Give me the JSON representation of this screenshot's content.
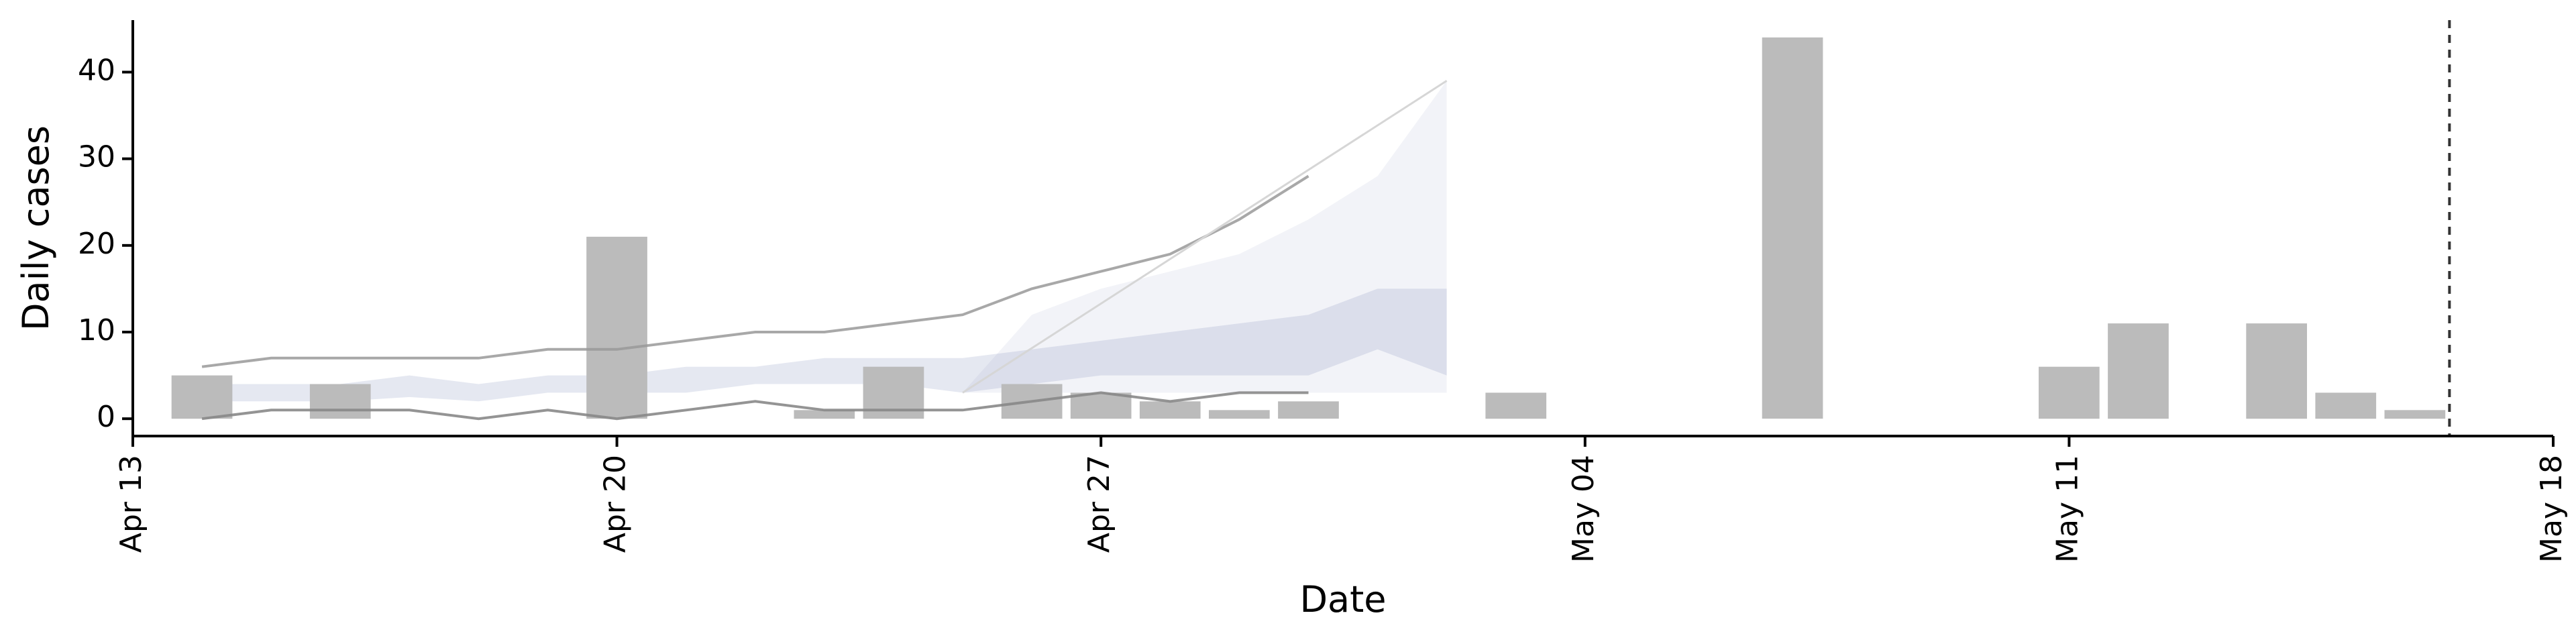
{
  "chart_data": {
    "type": "bar",
    "title": "",
    "xlabel": "Date",
    "ylabel": "Daily cases",
    "xlim": [
      "2020-04-13",
      "2020-05-18"
    ],
    "ylim": [
      -2,
      46
    ],
    "x_ticks": [
      "Apr 13",
      "Apr 20",
      "Apr 27",
      "May 04",
      "May 11",
      "May 18"
    ],
    "x_tick_dates": [
      "2020-04-13",
      "2020-04-20",
      "2020-04-27",
      "2020-05-04",
      "2020-05-11",
      "2020-05-18"
    ],
    "y_ticks": [
      0,
      10,
      20,
      30,
      40
    ],
    "grid": false,
    "bars": {
      "color": "#bbbbbb",
      "dates": [
        "2020-04-14",
        "2020-04-15",
        "2020-04-16",
        "2020-04-17",
        "2020-04-18",
        "2020-04-19",
        "2020-04-20",
        "2020-04-21",
        "2020-04-22",
        "2020-04-23",
        "2020-04-24",
        "2020-04-25",
        "2020-04-26",
        "2020-04-27",
        "2020-04-28",
        "2020-04-29",
        "2020-04-30",
        "2020-05-01",
        "2020-05-02",
        "2020-05-03",
        "2020-05-04",
        "2020-05-05",
        "2020-05-06",
        "2020-05-07",
        "2020-05-08",
        "2020-05-09",
        "2020-05-10",
        "2020-05-11",
        "2020-05-12",
        "2020-05-13",
        "2020-05-14",
        "2020-05-15",
        "2020-05-16"
      ],
      "values": [
        5,
        0,
        4,
        0,
        0,
        0,
        21,
        0,
        0,
        1,
        6,
        0,
        4,
        3,
        2,
        1,
        2,
        0,
        0,
        3,
        0,
        0,
        0,
        44,
        0,
        0,
        0,
        6,
        11,
        0,
        11,
        3,
        1
      ]
    },
    "forecast": {
      "dates": [
        "2020-04-14",
        "2020-04-15",
        "2020-04-16",
        "2020-04-17",
        "2020-04-18",
        "2020-04-19",
        "2020-04-20",
        "2020-04-21",
        "2020-04-22",
        "2020-04-23",
        "2020-04-24",
        "2020-04-25",
        "2020-04-26",
        "2020-04-27",
        "2020-04-28",
        "2020-04-29",
        "2020-04-30",
        "2020-05-01",
        "2020-05-02"
      ],
      "outer_lower": [
        3,
        3,
        3,
        3,
        3,
        3,
        3,
        3,
        3,
        3,
        3,
        3,
        3,
        3,
        3,
        3,
        3,
        3,
        3
      ],
      "outer_upper": [
        3,
        3,
        3,
        3,
        3,
        3,
        3,
        3,
        3,
        3,
        3,
        3,
        12,
        15,
        17,
        19,
        23,
        28,
        39
      ],
      "inner_lower": [
        2,
        2,
        2,
        2.5,
        2,
        3,
        3,
        3,
        4,
        4,
        4,
        3,
        4,
        5,
        5,
        5,
        5,
        8,
        5
      ],
      "inner_upper": [
        4,
        4,
        4,
        5,
        4,
        5,
        5,
        6,
        6,
        7,
        7,
        7,
        8,
        9,
        10,
        11,
        12,
        15,
        15
      ],
      "fill_color": "#8a95bd",
      "upper_line": [
        6,
        7,
        7,
        7,
        7,
        8,
        8,
        9,
        10,
        10,
        11,
        12,
        15,
        17,
        19,
        23,
        28,
        null,
        null
      ],
      "lower_line": [
        0,
        1,
        1,
        1,
        0,
        1,
        0,
        1,
        2,
        1,
        1,
        1,
        2,
        3,
        2,
        3,
        3,
        null,
        null
      ],
      "upper_line_color": "#999999",
      "lower_line_color": "#888888"
    },
    "vline_date": "2020-05-16T12:00:00"
  }
}
